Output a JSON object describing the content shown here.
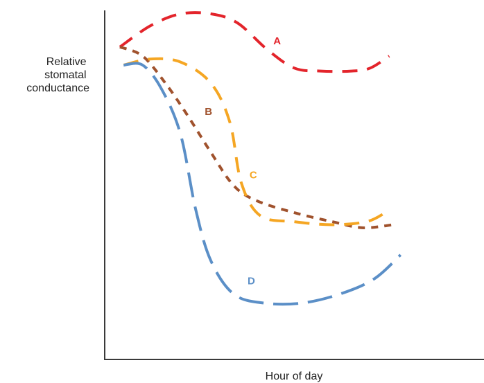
{
  "chart_data": {
    "type": "line",
    "xlabel": "Hour of day",
    "ylabel": [
      "Relative",
      "stomatal",
      "conductance"
    ],
    "grid": false,
    "legend": "none",
    "series": [
      {
        "name": "A",
        "color": "#e3242b",
        "dash": "dashed",
        "points": [
          [
            0.04,
            0.89
          ],
          [
            0.12,
            0.96
          ],
          [
            0.2,
            1.0
          ],
          [
            0.28,
            1.0
          ],
          [
            0.35,
            0.97
          ],
          [
            0.43,
            0.88
          ],
          [
            0.5,
            0.82
          ],
          [
            0.57,
            0.81
          ],
          [
            0.65,
            0.81
          ],
          [
            0.7,
            0.82
          ],
          [
            0.75,
            0.86
          ]
        ]
      },
      {
        "name": "B",
        "color": "#a0522d",
        "dash": "short-dashed",
        "points": [
          [
            0.04,
            0.89
          ],
          [
            0.1,
            0.86
          ],
          [
            0.16,
            0.77
          ],
          [
            0.22,
            0.66
          ],
          [
            0.28,
            0.54
          ],
          [
            0.34,
            0.43
          ],
          [
            0.4,
            0.38
          ],
          [
            0.5,
            0.34
          ],
          [
            0.6,
            0.31
          ],
          [
            0.68,
            0.29
          ],
          [
            0.76,
            0.3
          ]
        ]
      },
      {
        "name": "C",
        "color": "#f5a623",
        "dash": "dashed",
        "points": [
          [
            0.05,
            0.83
          ],
          [
            0.12,
            0.85
          ],
          [
            0.2,
            0.84
          ],
          [
            0.28,
            0.77
          ],
          [
            0.33,
            0.64
          ],
          [
            0.36,
            0.44
          ],
          [
            0.41,
            0.33
          ],
          [
            0.5,
            0.31
          ],
          [
            0.6,
            0.3
          ],
          [
            0.69,
            0.31
          ],
          [
            0.74,
            0.34
          ]
        ]
      },
      {
        "name": "D",
        "color": "#5b8fc7",
        "dash": "long-dashed",
        "points": [
          [
            0.05,
            0.83
          ],
          [
            0.1,
            0.83
          ],
          [
            0.15,
            0.75
          ],
          [
            0.2,
            0.6
          ],
          [
            0.24,
            0.35
          ],
          [
            0.28,
            0.18
          ],
          [
            0.34,
            0.07
          ],
          [
            0.42,
            0.04
          ],
          [
            0.52,
            0.04
          ],
          [
            0.62,
            0.07
          ],
          [
            0.71,
            0.12
          ],
          [
            0.78,
            0.2
          ]
        ]
      }
    ]
  }
}
